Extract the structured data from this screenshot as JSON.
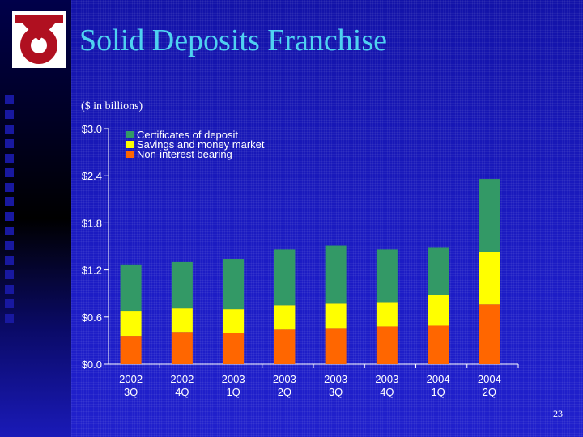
{
  "slide": {
    "title": "Solid Deposits Franchise",
    "units_note": "($ in billions)",
    "slide_number": "23"
  },
  "colors": {
    "background": "#1a1ab8",
    "title": "#4fd2f0",
    "certificates": "#339966",
    "savings": "#ffff00",
    "noninterest": "#ff6600",
    "logo_red": "#b01020"
  },
  "icons": {
    "logo": "red-anchor-ring-logo-icon"
  },
  "chart_data": {
    "type": "bar",
    "stacked": true,
    "title": "",
    "xlabel": "",
    "ylabel": "",
    "ylim": [
      0,
      3.0
    ],
    "y_ticks": [
      0,
      0.6,
      1.2,
      1.8,
      2.4,
      3.0
    ],
    "y_tick_labels": [
      "$0.0",
      "$0.6",
      "$1.2",
      "$1.8",
      "$2.4",
      "$3.0"
    ],
    "grid": false,
    "legend_position": "top-left",
    "categories": [
      [
        "2002",
        "3Q"
      ],
      [
        "2002",
        "4Q"
      ],
      [
        "2003",
        "1Q"
      ],
      [
        "2003",
        "2Q"
      ],
      [
        "2003",
        "3Q"
      ],
      [
        "2003",
        "4Q"
      ],
      [
        "2004",
        "1Q"
      ],
      [
        "2004",
        "2Q"
      ]
    ],
    "series": [
      {
        "name": "Non-interest bearing",
        "color": "#ff6600",
        "values": [
          0.36,
          0.41,
          0.4,
          0.44,
          0.46,
          0.48,
          0.49,
          0.76
        ]
      },
      {
        "name": "Savings and money market",
        "color": "#ffff00",
        "values": [
          0.32,
          0.3,
          0.3,
          0.31,
          0.31,
          0.31,
          0.39,
          0.67
        ]
      },
      {
        "name": "Certificates of deposit",
        "color": "#339966",
        "values": [
          0.59,
          0.59,
          0.64,
          0.71,
          0.74,
          0.67,
          0.61,
          0.93
        ]
      }
    ],
    "legend_order": [
      "Certificates of deposit",
      "Savings and money market",
      "Non-interest bearing"
    ]
  }
}
